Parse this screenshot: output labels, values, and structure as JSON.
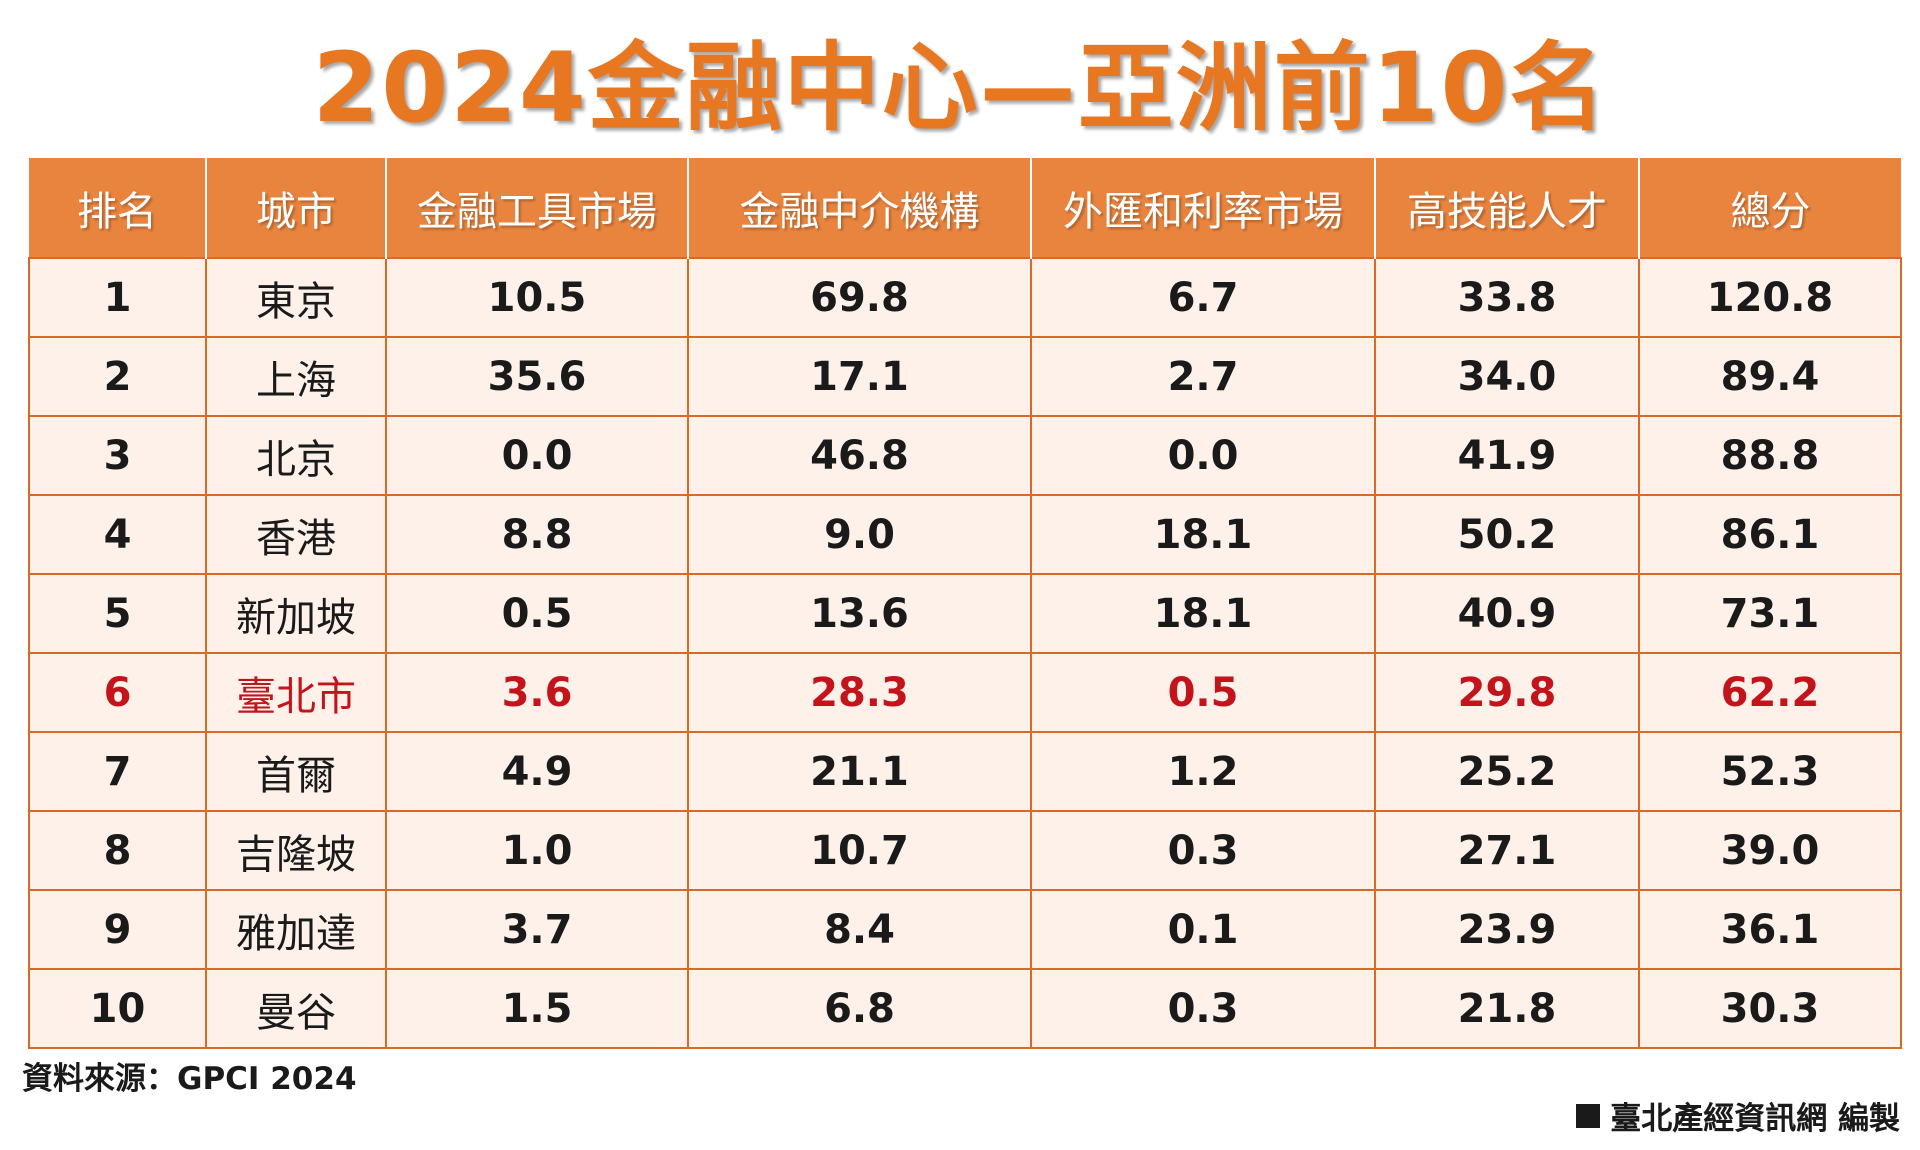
{
  "title": "2024金融中心—亞洲前10名",
  "colors": {
    "title": "#e87722",
    "header_bg": "#e8843e",
    "row_bg": "#fdf1ea",
    "border": "#d96a25",
    "highlight_text": "#c4141b"
  },
  "table": {
    "headers": [
      "排名",
      "城市",
      "金融工具市場",
      "金融中介機構",
      "外匯和利率市場",
      "高技能人才",
      "總分"
    ],
    "rows": [
      {
        "rank": "1",
        "city": "東京",
        "fin_instruments": "10.5",
        "fin_intermediaries": "69.8",
        "fx_rates": "6.7",
        "talent": "33.8",
        "total": "120.8"
      },
      {
        "rank": "2",
        "city": "上海",
        "fin_instruments": "35.6",
        "fin_intermediaries": "17.1",
        "fx_rates": "2.7",
        "talent": "34.0",
        "total": "89.4"
      },
      {
        "rank": "3",
        "city": "北京",
        "fin_instruments": "0.0",
        "fin_intermediaries": "46.8",
        "fx_rates": "0.0",
        "talent": "41.9",
        "total": "88.8"
      },
      {
        "rank": "4",
        "city": "香港",
        "fin_instruments": "8.8",
        "fin_intermediaries": "9.0",
        "fx_rates": "18.1",
        "talent": "50.2",
        "total": "86.1"
      },
      {
        "rank": "5",
        "city": "新加坡",
        "fin_instruments": "0.5",
        "fin_intermediaries": "13.6",
        "fx_rates": "18.1",
        "talent": "40.9",
        "total": "73.1"
      },
      {
        "rank": "6",
        "city": "臺北市",
        "fin_instruments": "3.6",
        "fin_intermediaries": "28.3",
        "fx_rates": "0.5",
        "talent": "29.8",
        "total": "62.2"
      },
      {
        "rank": "7",
        "city": "首爾",
        "fin_instruments": "4.9",
        "fin_intermediaries": "21.1",
        "fx_rates": "1.2",
        "talent": "25.2",
        "total": "52.3"
      },
      {
        "rank": "8",
        "city": "吉隆坡",
        "fin_instruments": "1.0",
        "fin_intermediaries": "10.7",
        "fx_rates": "0.3",
        "talent": "27.1",
        "total": "39.0"
      },
      {
        "rank": "9",
        "city": "雅加達",
        "fin_instruments": "3.7",
        "fin_intermediaries": "8.4",
        "fx_rates": "0.1",
        "talent": "23.9",
        "total": "36.1"
      },
      {
        "rank": "10",
        "city": "曼谷",
        "fin_instruments": "1.5",
        "fin_intermediaries": "6.8",
        "fx_rates": "0.3",
        "talent": "21.8",
        "total": "30.3"
      }
    ],
    "highlight_rank": "6"
  },
  "source": "資料來源：GPCI 2024",
  "credit": "臺北產經資訊網 編製"
}
